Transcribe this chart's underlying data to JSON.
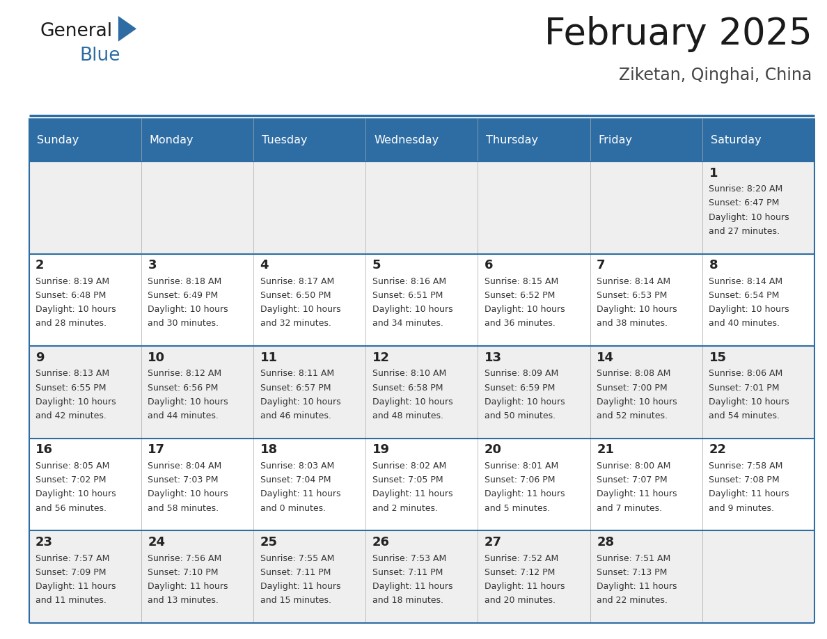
{
  "title": "February 2025",
  "subtitle": "Ziketan, Qinghai, China",
  "header_bg": "#2E6DA4",
  "header_text": "#FFFFFF",
  "cell_bg_odd": "#EFEFEF",
  "cell_bg_even": "#FFFFFF",
  "day_number_color": "#222222",
  "text_color": "#333333",
  "line_color": "#2E6DA4",
  "logo_text_color": "#1a1a1a",
  "logo_blue_color": "#2E6DA4",
  "days_of_week": [
    "Sunday",
    "Monday",
    "Tuesday",
    "Wednesday",
    "Thursday",
    "Friday",
    "Saturday"
  ],
  "weeks": [
    [
      {
        "day": null,
        "sunrise": null,
        "sunset": null,
        "daylight": null
      },
      {
        "day": null,
        "sunrise": null,
        "sunset": null,
        "daylight": null
      },
      {
        "day": null,
        "sunrise": null,
        "sunset": null,
        "daylight": null
      },
      {
        "day": null,
        "sunrise": null,
        "sunset": null,
        "daylight": null
      },
      {
        "day": null,
        "sunrise": null,
        "sunset": null,
        "daylight": null
      },
      {
        "day": null,
        "sunrise": null,
        "sunset": null,
        "daylight": null
      },
      {
        "day": 1,
        "sunrise": "8:20 AM",
        "sunset": "6:47 PM",
        "daylight": "10 hours and 27 minutes."
      }
    ],
    [
      {
        "day": 2,
        "sunrise": "8:19 AM",
        "sunset": "6:48 PM",
        "daylight": "10 hours and 28 minutes."
      },
      {
        "day": 3,
        "sunrise": "8:18 AM",
        "sunset": "6:49 PM",
        "daylight": "10 hours and 30 minutes."
      },
      {
        "day": 4,
        "sunrise": "8:17 AM",
        "sunset": "6:50 PM",
        "daylight": "10 hours and 32 minutes."
      },
      {
        "day": 5,
        "sunrise": "8:16 AM",
        "sunset": "6:51 PM",
        "daylight": "10 hours and 34 minutes."
      },
      {
        "day": 6,
        "sunrise": "8:15 AM",
        "sunset": "6:52 PM",
        "daylight": "10 hours and 36 minutes."
      },
      {
        "day": 7,
        "sunrise": "8:14 AM",
        "sunset": "6:53 PM",
        "daylight": "10 hours and 38 minutes."
      },
      {
        "day": 8,
        "sunrise": "8:14 AM",
        "sunset": "6:54 PM",
        "daylight": "10 hours and 40 minutes."
      }
    ],
    [
      {
        "day": 9,
        "sunrise": "8:13 AM",
        "sunset": "6:55 PM",
        "daylight": "10 hours and 42 minutes."
      },
      {
        "day": 10,
        "sunrise": "8:12 AM",
        "sunset": "6:56 PM",
        "daylight": "10 hours and 44 minutes."
      },
      {
        "day": 11,
        "sunrise": "8:11 AM",
        "sunset": "6:57 PM",
        "daylight": "10 hours and 46 minutes."
      },
      {
        "day": 12,
        "sunrise": "8:10 AM",
        "sunset": "6:58 PM",
        "daylight": "10 hours and 48 minutes."
      },
      {
        "day": 13,
        "sunrise": "8:09 AM",
        "sunset": "6:59 PM",
        "daylight": "10 hours and 50 minutes."
      },
      {
        "day": 14,
        "sunrise": "8:08 AM",
        "sunset": "7:00 PM",
        "daylight": "10 hours and 52 minutes."
      },
      {
        "day": 15,
        "sunrise": "8:06 AM",
        "sunset": "7:01 PM",
        "daylight": "10 hours and 54 minutes."
      }
    ],
    [
      {
        "day": 16,
        "sunrise": "8:05 AM",
        "sunset": "7:02 PM",
        "daylight": "10 hours and 56 minutes."
      },
      {
        "day": 17,
        "sunrise": "8:04 AM",
        "sunset": "7:03 PM",
        "daylight": "10 hours and 58 minutes."
      },
      {
        "day": 18,
        "sunrise": "8:03 AM",
        "sunset": "7:04 PM",
        "daylight": "11 hours and 0 minutes."
      },
      {
        "day": 19,
        "sunrise": "8:02 AM",
        "sunset": "7:05 PM",
        "daylight": "11 hours and 2 minutes."
      },
      {
        "day": 20,
        "sunrise": "8:01 AM",
        "sunset": "7:06 PM",
        "daylight": "11 hours and 5 minutes."
      },
      {
        "day": 21,
        "sunrise": "8:00 AM",
        "sunset": "7:07 PM",
        "daylight": "11 hours and 7 minutes."
      },
      {
        "day": 22,
        "sunrise": "7:58 AM",
        "sunset": "7:08 PM",
        "daylight": "11 hours and 9 minutes."
      }
    ],
    [
      {
        "day": 23,
        "sunrise": "7:57 AM",
        "sunset": "7:09 PM",
        "daylight": "11 hours and 11 minutes."
      },
      {
        "day": 24,
        "sunrise": "7:56 AM",
        "sunset": "7:10 PM",
        "daylight": "11 hours and 13 minutes."
      },
      {
        "day": 25,
        "sunrise": "7:55 AM",
        "sunset": "7:11 PM",
        "daylight": "11 hours and 15 minutes."
      },
      {
        "day": 26,
        "sunrise": "7:53 AM",
        "sunset": "7:11 PM",
        "daylight": "11 hours and 18 minutes."
      },
      {
        "day": 27,
        "sunrise": "7:52 AM",
        "sunset": "7:12 PM",
        "daylight": "11 hours and 20 minutes."
      },
      {
        "day": 28,
        "sunrise": "7:51 AM",
        "sunset": "7:13 PM",
        "daylight": "11 hours and 22 minutes."
      },
      {
        "day": null,
        "sunrise": null,
        "sunset": null,
        "daylight": null
      }
    ]
  ]
}
